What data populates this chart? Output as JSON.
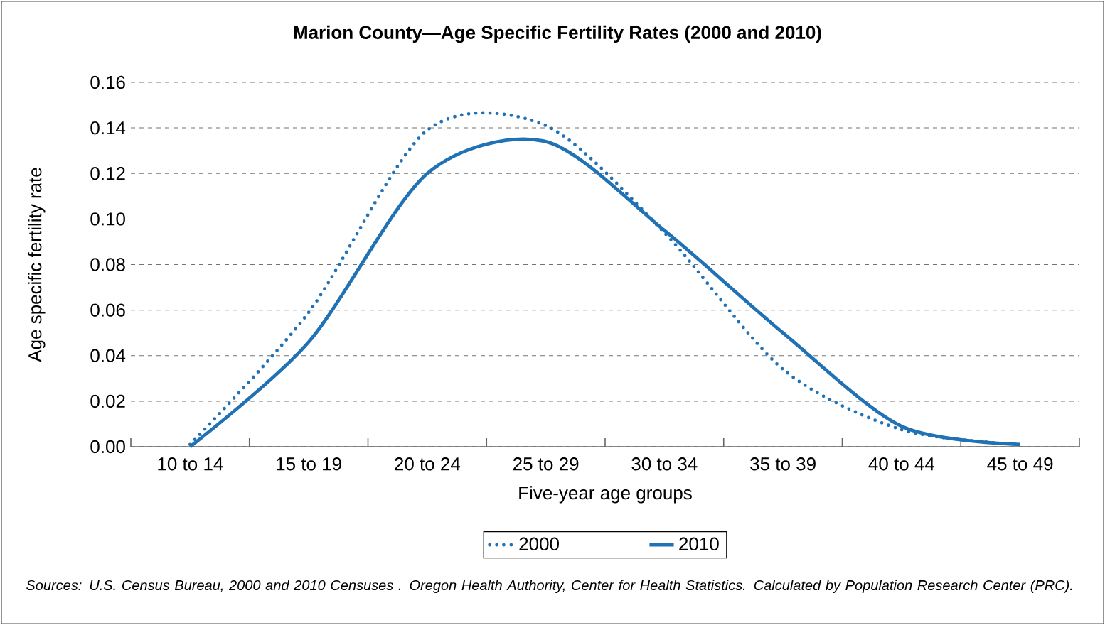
{
  "chart_data": {
    "type": "line",
    "title": "Marion County—Age Specific Fertility Rates (2000 and 2010)",
    "xlabel": "Five-year age groups",
    "ylabel": "Age specific fertility rate",
    "categories": [
      "10 to 14",
      "15 to 19",
      "20 to 24",
      "25 to 29",
      "30 to 34",
      "35 to 39",
      "40 to 44",
      "45 to 49"
    ],
    "series": [
      {
        "name": "2000",
        "color": "#2072b5",
        "line_style": "dotted",
        "values": [
          0.001,
          0.059,
          0.139,
          0.141,
          0.094,
          0.034,
          0.0075,
          0.001
        ]
      },
      {
        "name": "2010",
        "color": "#2072b5",
        "line_style": "solid",
        "values": [
          0.0,
          0.046,
          0.12,
          0.134,
          0.095,
          0.05,
          0.009,
          0.001
        ]
      }
    ],
    "ylim": [
      0,
      0.16
    ],
    "yticks": [
      {
        "value": 0,
        "label": "0.00"
      },
      {
        "value": 0.02,
        "label": "0.02"
      },
      {
        "value": 0.04,
        "label": "0.04"
      },
      {
        "value": 0.06,
        "label": "0.06"
      },
      {
        "value": 0.08,
        "label": "0.08"
      },
      {
        "value": 0.1,
        "label": "0.10"
      },
      {
        "value": 0.12,
        "label": "0.12"
      },
      {
        "value": 0.14,
        "label": "0.14"
      },
      {
        "value": 0.16,
        "label": "0.16"
      }
    ],
    "grid": "y",
    "legend": "bottom",
    "marker": "none",
    "annotations": [
      "Sources: U.S. Census Bureau, 2000 and 2010 Censuses . Oregon Health Authority, Center for Health Statistics. Calculated by Population Research Center (PRC)."
    ]
  }
}
